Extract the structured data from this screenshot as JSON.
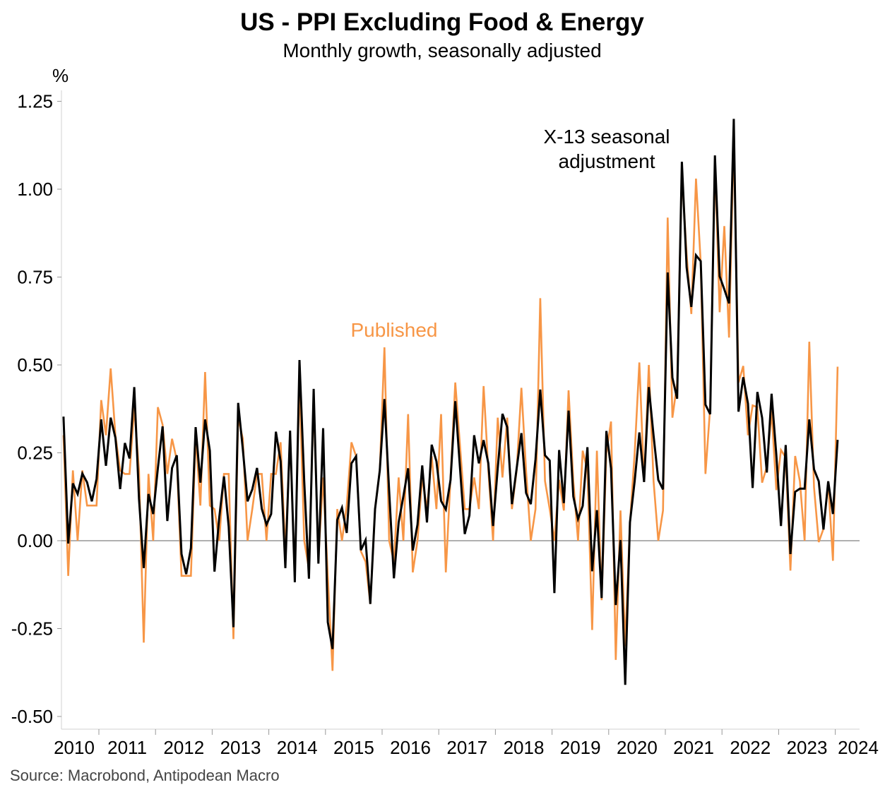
{
  "chart_data": {
    "type": "line",
    "title": "US - PPI Excluding Food & Energy",
    "subtitle": "Monthly growth, seasonally adjusted",
    "ylabel": "%",
    "xlabel": "",
    "ylim": [
      -0.5,
      1.25
    ],
    "yticks": [
      "1.25",
      "1.00",
      "0.75",
      "0.50",
      "0.25",
      "0.00",
      "-0.25",
      "-0.50"
    ],
    "ytick_values": [
      1.25,
      1.0,
      0.75,
      0.5,
      0.25,
      0.0,
      -0.25,
      -0.5
    ],
    "xticks": [
      "2010",
      "2011",
      "2012",
      "2013",
      "2014",
      "2015",
      "2016",
      "2017",
      "2018",
      "2019",
      "2020",
      "2021",
      "2022",
      "2023",
      "2024"
    ],
    "x_start": "2010-05",
    "frequency": "monthly",
    "grid": false,
    "series": [
      {
        "name": "Published",
        "color": "#F79646",
        "values": [
          0.3,
          -0.1,
          0.2,
          0.0,
          0.2,
          0.1,
          0.1,
          0.1,
          0.4,
          0.3,
          0.49,
          0.3,
          0.2,
          0.19,
          0.19,
          0.38,
          0.2,
          -0.29,
          0.19,
          0.0,
          0.38,
          0.33,
          0.19,
          0.29,
          0.23,
          -0.1,
          -0.1,
          -0.1,
          0.3,
          0.1,
          0.48,
          0.1,
          0.09,
          0.0,
          0.19,
          0.19,
          -0.28,
          0.35,
          0.29,
          0.0,
          0.09,
          0.19,
          0.19,
          0.0,
          0.19,
          0.19,
          0.28,
          -0.03,
          0.29,
          -0.1,
          0.46,
          0.0,
          -0.08,
          0.4,
          -0.05,
          0.18,
          -0.1,
          -0.37,
          0.09,
          0.0,
          0.1,
          0.28,
          0.24,
          -0.03,
          -0.06,
          -0.18,
          0.09,
          0.2,
          0.55,
          0.0,
          -0.06,
          0.18,
          0.0,
          0.36,
          -0.09,
          0.0,
          0.18,
          0.09,
          0.24,
          0.09,
          0.36,
          -0.09,
          0.18,
          0.45,
          0.27,
          0.09,
          0.09,
          0.18,
          0.09,
          0.44,
          0.2,
          0.0,
          0.35,
          0.18,
          0.35,
          0.09,
          0.2,
          0.435,
          0.2,
          0.0,
          0.09,
          0.69,
          0.17,
          0.09,
          0.0,
          0.173,
          0.086,
          0.428,
          0.17,
          0.0,
          0.256,
          0.2,
          -0.254,
          0.256,
          -0.169,
          0.25,
          0.339,
          -0.339,
          0.086,
          -0.3,
          0.05,
          0.25,
          0.507,
          0.167,
          0.5,
          0.17,
          0.0,
          0.086,
          0.919,
          0.35,
          0.447,
          1.05,
          0.815,
          0.645,
          1.03,
          0.79,
          0.19,
          0.38,
          1.08,
          0.65,
          0.895,
          0.578,
          1.15,
          0.45,
          0.497,
          0.3,
          0.385,
          0.38,
          0.165,
          0.21,
          0.37,
          0.144,
          0.258,
          0.237,
          -0.085,
          0.241,
          0.169,
          0.0,
          0.566,
          0.152,
          -0.004,
          0.034,
          0.165,
          -0.057,
          0.495
        ]
      },
      {
        "name": "X-13 seasonal adjustment",
        "color": "#000000",
        "values": [
          0.353,
          -0.008,
          0.163,
          0.133,
          0.191,
          0.166,
          0.112,
          0.176,
          0.345,
          0.213,
          0.35,
          0.293,
          0.147,
          0.278,
          0.234,
          0.437,
          0.119,
          -0.078,
          0.133,
          0.076,
          0.206,
          0.325,
          0.056,
          0.207,
          0.243,
          -0.038,
          -0.095,
          -0.021,
          0.323,
          0.165,
          0.345,
          0.256,
          -0.088,
          0.066,
          0.183,
          0.04,
          -0.246,
          0.392,
          0.26,
          0.112,
          0.146,
          0.207,
          0.091,
          0.046,
          0.076,
          0.31,
          0.226,
          -0.078,
          0.313,
          -0.118,
          0.514,
          0.17,
          -0.108,
          0.432,
          -0.065,
          0.32,
          -0.232,
          -0.308,
          0.059,
          0.094,
          0.022,
          0.22,
          0.24,
          -0.027,
          0.002,
          -0.18,
          0.09,
          0.2,
          0.403,
          0.14,
          -0.107,
          0.052,
          0.126,
          0.206,
          -0.028,
          0.046,
          0.214,
          0.052,
          0.273,
          0.226,
          0.113,
          0.089,
          0.173,
          0.397,
          0.206,
          0.019,
          0.072,
          0.3,
          0.22,
          0.286,
          0.22,
          0.042,
          0.206,
          0.361,
          0.323,
          0.104,
          0.206,
          0.306,
          0.136,
          0.104,
          0.232,
          0.43,
          0.243,
          0.228,
          -0.149,
          0.258,
          0.107,
          0.37,
          0.126,
          0.062,
          0.099,
          0.266,
          -0.087,
          0.087,
          -0.163,
          0.312,
          0.206,
          -0.183,
          0.002,
          -0.41,
          0.052,
          0.17,
          0.308,
          0.167,
          0.437,
          0.3,
          0.173,
          0.146,
          0.763,
          0.464,
          0.404,
          1.078,
          0.778,
          0.665,
          0.812,
          0.795,
          0.387,
          0.36,
          1.096,
          0.752,
          0.715,
          0.675,
          1.2,
          0.367,
          0.465,
          0.39,
          0.15,
          0.423,
          0.35,
          0.194,
          0.418,
          0.245,
          0.042,
          0.272,
          -0.038,
          0.139,
          0.148,
          0.148,
          0.345,
          0.203,
          0.169,
          0.032,
          0.169,
          0.076,
          0.287
        ]
      }
    ],
    "annotations": {
      "published": "Published",
      "x13_line1": "X-13 seasonal",
      "x13_line2": "adjustment"
    },
    "source": "Source: Macrobond, Antipodean Macro"
  }
}
